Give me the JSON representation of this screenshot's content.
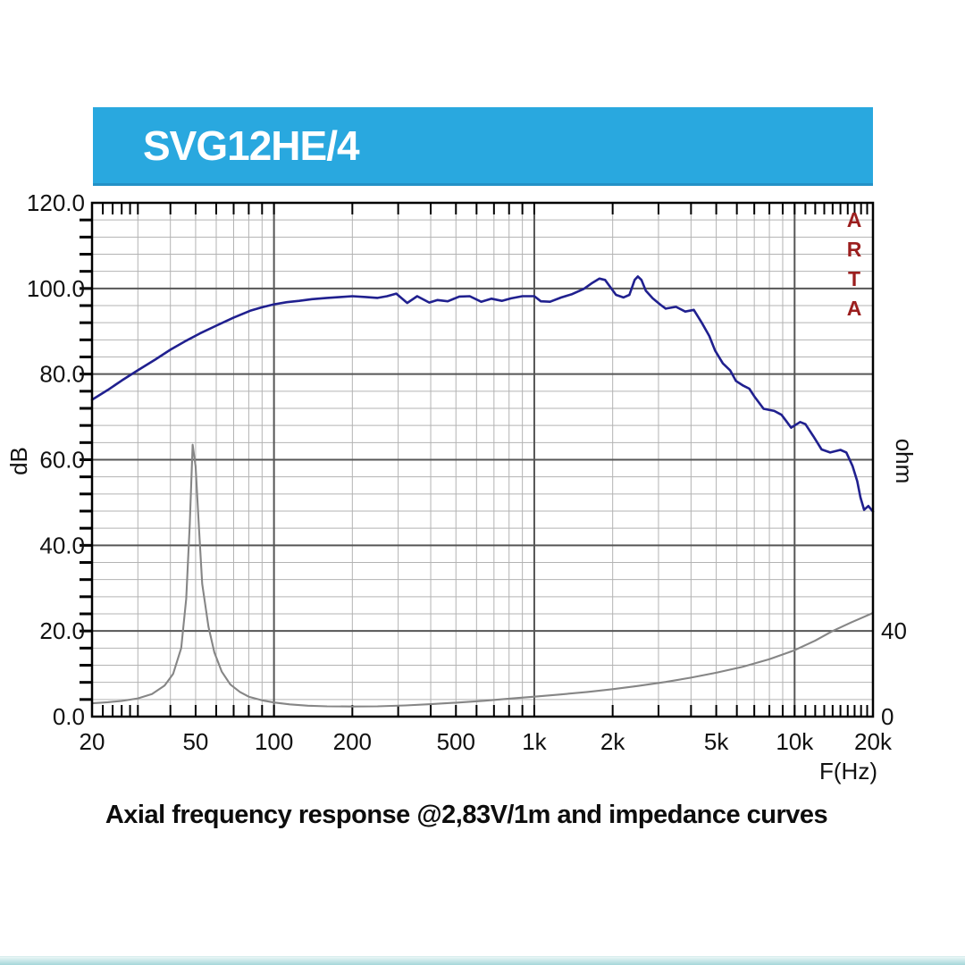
{
  "header": {
    "title": "SVG12HE/4",
    "bg_color": "#29a8df",
    "text_color": "#ffffff"
  },
  "caption": "Axial frequency response @2,83V/1m and impedance curves",
  "watermark": "ARTA",
  "colors": {
    "response_curve": "#20208f",
    "impedance_curve": "#868686",
    "grid_minor": "#b3b3b3",
    "grid_major": "#565656",
    "frame": "#000000",
    "watermark_text": "#9b1e1e",
    "header_bg": "#29a8df",
    "bottom_strip": "#a5d6d9"
  },
  "chart_data": {
    "type": "line",
    "title": "SVG12HE/4",
    "subtitle": "Axial frequency response @2,83V/1m and impedance curves",
    "x_axis": {
      "label": "F(Hz)",
      "scale": "log",
      "min": 20,
      "max": 20000,
      "tick_labels": [
        {
          "label": "20",
          "f": 20
        },
        {
          "label": "50",
          "f": 50
        },
        {
          "label": "100",
          "f": 100
        },
        {
          "label": "200",
          "f": 200
        },
        {
          "label": "500",
          "f": 500
        },
        {
          "label": "1k",
          "f": 1000
        },
        {
          "label": "2k",
          "f": 2000
        },
        {
          "label": "5k",
          "f": 5000
        },
        {
          "label": "10k",
          "f": 10000
        },
        {
          "label": "20k",
          "f": 20000
        }
      ],
      "minor_gridlines": [
        30,
        40,
        50,
        60,
        70,
        80,
        90,
        200,
        300,
        400,
        500,
        600,
        700,
        800,
        900,
        2000,
        3000,
        4000,
        5000,
        6000,
        7000,
        8000,
        9000
      ],
      "major_gridlines": [
        100,
        1000,
        10000
      ],
      "extra_tick_freqs": [
        22,
        24,
        26,
        28,
        11000,
        12000,
        13000,
        14000,
        15000,
        16000,
        17000,
        18000,
        19000
      ]
    },
    "y_left_axis": {
      "label": "dB",
      "min": 0,
      "max": 120,
      "gridline_step": 4,
      "major_step": 20,
      "tick_labels": [
        {
          "label": "120.0",
          "value": 120
        },
        {
          "label": "100.0",
          "value": 100
        },
        {
          "label": "80.0",
          "value": 80
        },
        {
          "label": "60.0",
          "value": 60
        },
        {
          "label": "40.0",
          "value": 40
        },
        {
          "label": "20.0",
          "value": 20
        },
        {
          "label": "0.0",
          "value": 0
        }
      ]
    },
    "y_right_axis": {
      "label": "ohm",
      "min": 0,
      "max": 240,
      "tick_labels": [
        {
          "label": "40",
          "value": 40
        },
        {
          "label": "0",
          "value": 0
        }
      ]
    },
    "legend": "none",
    "grid": "on",
    "series": [
      {
        "name": "axial frequency response",
        "unit": "dB",
        "axis": "left",
        "color": "#20208f",
        "points": [
          [
            20,
            74.0
          ],
          [
            23,
            76.3
          ],
          [
            26,
            78.5
          ],
          [
            30,
            80.9
          ],
          [
            35,
            83.4
          ],
          [
            40,
            85.7
          ],
          [
            46,
            87.8
          ],
          [
            52,
            89.5
          ],
          [
            60,
            91.3
          ],
          [
            70,
            93.2
          ],
          [
            81,
            94.8
          ],
          [
            90,
            95.6
          ],
          [
            100,
            96.3
          ],
          [
            112,
            96.8
          ],
          [
            125,
            97.1
          ],
          [
            140,
            97.5
          ],
          [
            160,
            97.8
          ],
          [
            180,
            98.0
          ],
          [
            200,
            98.2
          ],
          [
            225,
            98.0
          ],
          [
            250,
            97.8
          ],
          [
            272,
            98.2
          ],
          [
            295,
            98.8
          ],
          [
            325,
            96.6
          ],
          [
            355,
            98.2
          ],
          [
            395,
            96.7
          ],
          [
            425,
            97.3
          ],
          [
            465,
            97.0
          ],
          [
            515,
            98.1
          ],
          [
            565,
            98.2
          ],
          [
            625,
            96.9
          ],
          [
            685,
            97.6
          ],
          [
            750,
            97.1
          ],
          [
            815,
            97.7
          ],
          [
            900,
            98.2
          ],
          [
            1000,
            98.2
          ],
          [
            1060,
            97.0
          ],
          [
            1150,
            96.9
          ],
          [
            1270,
            97.9
          ],
          [
            1400,
            98.7
          ],
          [
            1550,
            99.9
          ],
          [
            1670,
            101.3
          ],
          [
            1780,
            102.3
          ],
          [
            1870,
            102.0
          ],
          [
            1960,
            100.3
          ],
          [
            2060,
            98.5
          ],
          [
            2200,
            97.9
          ],
          [
            2320,
            98.5
          ],
          [
            2430,
            102.0
          ],
          [
            2500,
            102.8
          ],
          [
            2580,
            102.0
          ],
          [
            2680,
            99.5
          ],
          [
            2850,
            97.7
          ],
          [
            3050,
            96.2
          ],
          [
            3200,
            95.3
          ],
          [
            3500,
            95.7
          ],
          [
            3800,
            94.6
          ],
          [
            4100,
            95.0
          ],
          [
            4400,
            92.0
          ],
          [
            4700,
            88.9
          ],
          [
            4950,
            85.5
          ],
          [
            5300,
            82.5
          ],
          [
            5650,
            80.9
          ],
          [
            5950,
            78.4
          ],
          [
            6350,
            77.3
          ],
          [
            6700,
            76.6
          ],
          [
            7000,
            74.8
          ],
          [
            7600,
            71.9
          ],
          [
            8350,
            71.4
          ],
          [
            8900,
            70.5
          ],
          [
            9300,
            69.0
          ],
          [
            9700,
            67.5
          ],
          [
            10500,
            68.8
          ],
          [
            11000,
            68.3
          ],
          [
            11800,
            65.5
          ],
          [
            12700,
            62.4
          ],
          [
            13700,
            61.7
          ],
          [
            15000,
            62.3
          ],
          [
            15800,
            61.7
          ],
          [
            16700,
            58.5
          ],
          [
            17400,
            55.0
          ],
          [
            17900,
            51.2
          ],
          [
            18500,
            48.3
          ],
          [
            19200,
            49.2
          ],
          [
            20000,
            47.9
          ]
        ]
      },
      {
        "name": "impedance",
        "unit": "ohm",
        "axis": "right",
        "color": "#868686",
        "points": [
          [
            20,
            6.2
          ],
          [
            23,
            6.7
          ],
          [
            26,
            7.3
          ],
          [
            30,
            8.5
          ],
          [
            34,
            10.5
          ],
          [
            38,
            14.5
          ],
          [
            41,
            20
          ],
          [
            44,
            32
          ],
          [
            46,
            55
          ],
          [
            47.5,
            90
          ],
          [
            48.7,
            127
          ],
          [
            50,
            117
          ],
          [
            51.5,
            88
          ],
          [
            53,
            62
          ],
          [
            56,
            42
          ],
          [
            59,
            30
          ],
          [
            63,
            21
          ],
          [
            68,
            15
          ],
          [
            74,
            11.5
          ],
          [
            80,
            9.3
          ],
          [
            90,
            7.6
          ],
          [
            100,
            6.6
          ],
          [
            115,
            5.7
          ],
          [
            135,
            5.1
          ],
          [
            160,
            4.8
          ],
          [
            200,
            4.7
          ],
          [
            250,
            4.8
          ],
          [
            320,
            5.2
          ],
          [
            400,
            5.8
          ],
          [
            500,
            6.5
          ],
          [
            640,
            7.4
          ],
          [
            800,
            8.4
          ],
          [
            1000,
            9.3
          ],
          [
            1250,
            10.3
          ],
          [
            1600,
            11.5
          ],
          [
            2000,
            12.8
          ],
          [
            2500,
            14.3
          ],
          [
            3200,
            16.2
          ],
          [
            4000,
            18.2
          ],
          [
            5000,
            20.5
          ],
          [
            6300,
            23.2
          ],
          [
            8000,
            26.8
          ],
          [
            10000,
            31.0
          ],
          [
            12000,
            35.5
          ],
          [
            14000,
            40.0
          ],
          [
            16500,
            44.0
          ],
          [
            18000,
            46.0
          ],
          [
            20000,
            48.4
          ]
        ]
      }
    ]
  }
}
